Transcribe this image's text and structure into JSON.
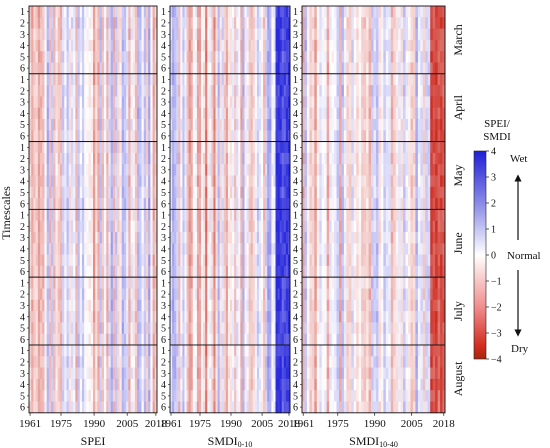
{
  "chart_data": {
    "type": "heatmap",
    "panels": [
      {
        "name": "SPEI",
        "label_main": "SPEI",
        "label_sub": ""
      },
      {
        "name": "SMDI0-10",
        "label_main": "SMDI",
        "label_sub": "0-10"
      },
      {
        "name": "SMDI10-40",
        "label_main": "SMDI",
        "label_sub": "10-40"
      }
    ],
    "months": [
      "March",
      "April",
      "May",
      "June",
      "July",
      "August"
    ],
    "timescales": [
      "1",
      "2",
      "3",
      "4",
      "5",
      "6"
    ],
    "ylabel": "Timescales",
    "years": [
      1961,
      2018
    ],
    "xticks": [
      "1961",
      "1975",
      "1990",
      "2005",
      "2018"
    ],
    "xtick_years": [
      1961,
      1975,
      1990,
      2005,
      2018
    ],
    "colorbar": {
      "title_line1": "SPEI/",
      "title_line2": "SMDI",
      "ticks": [
        "4",
        "3",
        "2",
        "1",
        "0",
        "−1",
        "−2",
        "−3",
        "−4"
      ],
      "range": [
        -4,
        4
      ],
      "wet_label": "Wet",
      "normal_label": "Normal",
      "dry_label": "Dry"
    },
    "values_note": ""
  }
}
